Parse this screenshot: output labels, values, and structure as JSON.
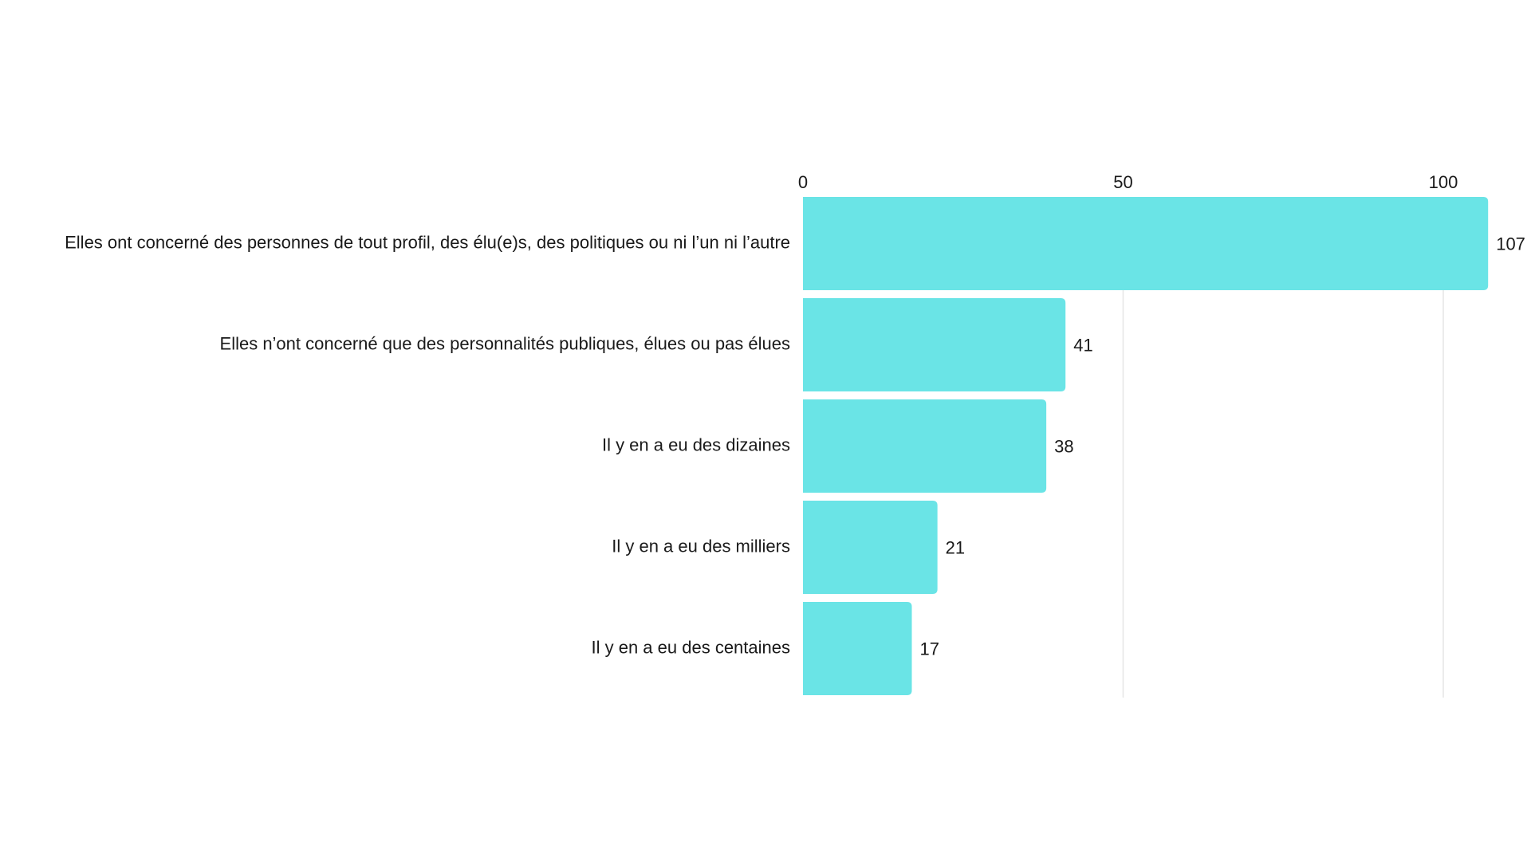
{
  "chart_data": {
    "type": "bar",
    "orientation": "horizontal",
    "title": "",
    "xlabel": "",
    "ylabel": "",
    "categories": [
      "Elles ont concerné des personnes de tout profil, des élu(e)s, des politiques ou ni l’un ni l’autre",
      "Elles n’ont concerné que des personnalités publiques, élues ou pas élues",
      "Il y en a eu des dizaines",
      "Il y en a eu des milliers",
      "Il y en a eu des centaines"
    ],
    "values": [
      107,
      41,
      38,
      21,
      17
    ],
    "xlim": [
      0,
      107
    ],
    "ticks": [
      0,
      50,
      100
    ],
    "tick_position": "top",
    "grid": true,
    "legend": "none",
    "bar_color": "#6ae4e6",
    "gridline_color": "#e6e6e6"
  }
}
